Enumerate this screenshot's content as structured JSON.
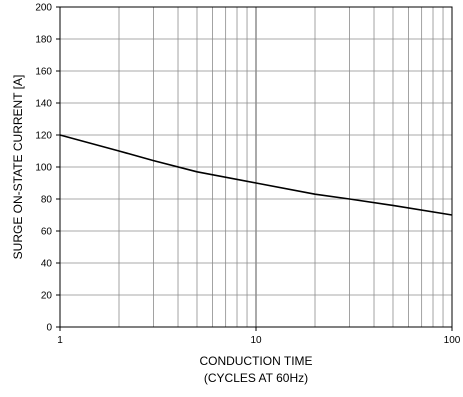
{
  "chart_data": {
    "type": "line",
    "x_scale": "log",
    "xlim": [
      1,
      100
    ],
    "ylim": [
      0,
      200
    ],
    "grid": true,
    "xlabel_line1": "CONDUCTION TIME",
    "xlabel_line2": "(CYCLES AT 60Hz)",
    "ylabel": "SURGE ON-STATE CURRENT [A]",
    "x_tick_labels": [
      {
        "value": 1,
        "label": "1"
      },
      {
        "value": 10,
        "label": "10"
      },
      {
        "value": 100,
        "label": "100"
      }
    ],
    "y_ticks": [
      0,
      20,
      40,
      60,
      80,
      100,
      120,
      140,
      160,
      180,
      200
    ],
    "series": [
      {
        "color": "#000000",
        "points": [
          {
            "x": 1,
            "y": 120
          },
          {
            "x": 2,
            "y": 110
          },
          {
            "x": 3,
            "y": 104
          },
          {
            "x": 5,
            "y": 97
          },
          {
            "x": 10,
            "y": 90
          },
          {
            "x": 20,
            "y": 83
          },
          {
            "x": 30,
            "y": 80
          },
          {
            "x": 50,
            "y": 76
          },
          {
            "x": 100,
            "y": 70
          }
        ]
      }
    ]
  }
}
